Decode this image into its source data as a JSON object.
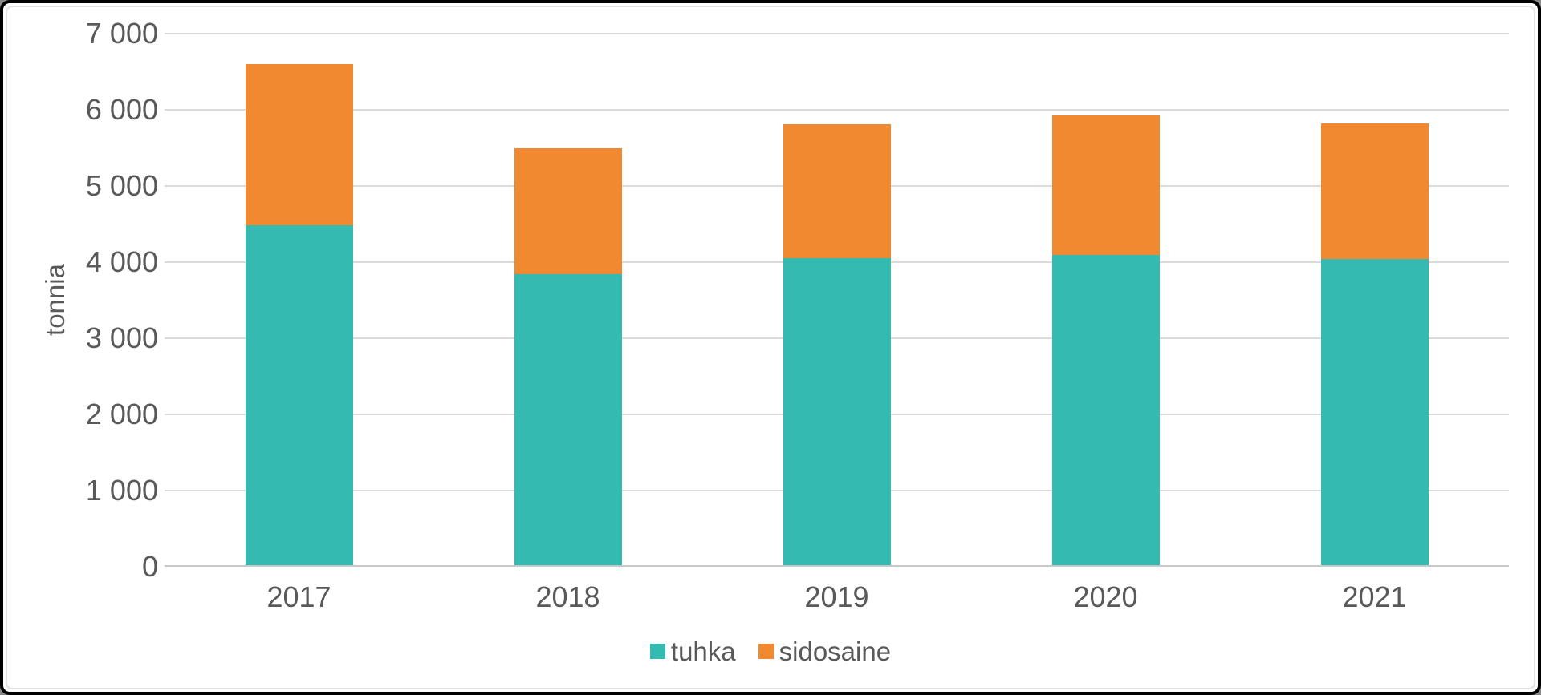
{
  "chart_data": {
    "type": "bar",
    "stacked": true,
    "title": "",
    "ylabel": "tonnia",
    "xlabel": "",
    "categories": [
      "2017",
      "2018",
      "2019",
      "2020",
      "2021"
    ],
    "series": [
      {
        "name": "tuhka",
        "color": "#35bab2",
        "values": [
          4480,
          3840,
          4050,
          4100,
          4040
        ]
      },
      {
        "name": "sidosaine",
        "color": "#f0892f",
        "values": [
          2120,
          1660,
          1760,
          1830,
          1780
        ]
      }
    ],
    "ylim": [
      0,
      7000
    ],
    "ytick_step": 1000,
    "yticks": [
      {
        "value": 0,
        "label": "0"
      },
      {
        "value": 1000,
        "label": "1 000"
      },
      {
        "value": 2000,
        "label": "2 000"
      },
      {
        "value": 3000,
        "label": "3 000"
      },
      {
        "value": 4000,
        "label": "4 000"
      },
      {
        "value": 5000,
        "label": "5 000"
      },
      {
        "value": 6000,
        "label": "6 000"
      },
      {
        "value": 7000,
        "label": "7 000"
      }
    ],
    "grid": true,
    "legend_position": "bottom",
    "bar_width_ratio": 0.4
  },
  "styles": {
    "text_color": "#595959",
    "gridline_color": "#dbdbdb",
    "axis_color": "#c9c9c9",
    "background": "#ffffff",
    "frame_color": "#000000"
  }
}
